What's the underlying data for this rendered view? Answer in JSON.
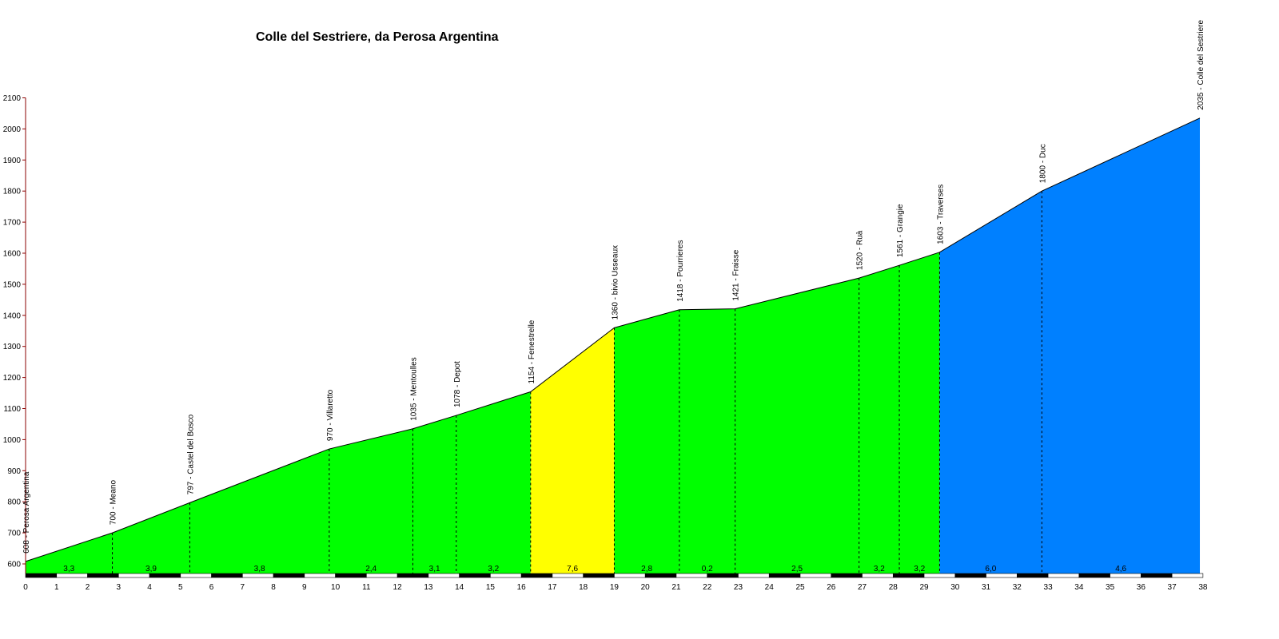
{
  "chart_data": {
    "type": "area",
    "title": "Colle del Sestriere, da Perosa Argentina",
    "xlabel": "",
    "ylabel": "",
    "xlim": [
      0,
      38
    ],
    "ylim": [
      590,
      2100
    ],
    "y_ticks": [
      600,
      700,
      800,
      900,
      1000,
      1100,
      1200,
      1300,
      1400,
      1500,
      1600,
      1700,
      1800,
      1900,
      2000,
      2100
    ],
    "x_ticks": [
      0,
      1,
      2,
      3,
      4,
      5,
      6,
      7,
      8,
      9,
      10,
      11,
      12,
      13,
      14,
      15,
      16,
      17,
      18,
      19,
      20,
      21,
      22,
      23,
      24,
      25,
      26,
      27,
      28,
      29,
      30,
      31,
      32,
      33,
      34,
      35,
      36,
      37,
      38
    ],
    "grid": false,
    "colors": {
      "green": "#00ff00",
      "yellow": "#ffff00",
      "blue": "#0080ff",
      "axis": "#8b0000"
    },
    "waypoints": [
      {
        "km": 0.0,
        "alt": 608,
        "label": "608 - Perosa Argentina"
      },
      {
        "km": 2.8,
        "alt": 700,
        "label": "700 - Meano"
      },
      {
        "km": 5.3,
        "alt": 797,
        "label": "797 - Castel del Bosco"
      },
      {
        "km": 9.8,
        "alt": 970,
        "label": "970 - Villaretto"
      },
      {
        "km": 12.5,
        "alt": 1035,
        "label": "1035 - Mentoulles"
      },
      {
        "km": 13.9,
        "alt": 1078,
        "label": "1078 - Depot"
      },
      {
        "km": 16.3,
        "alt": 1154,
        "label": "1154 - Fenestrelle"
      },
      {
        "km": 19.0,
        "alt": 1360,
        "label": "1360 - bivio Usseaux"
      },
      {
        "km": 21.1,
        "alt": 1418,
        "label": "1418 - Pourrieres"
      },
      {
        "km": 22.9,
        "alt": 1421,
        "label": "1421 - Fraisse"
      },
      {
        "km": 26.9,
        "alt": 1520,
        "label": "1520 - Ruà"
      },
      {
        "km": 28.2,
        "alt": 1561,
        "label": "1561 - Grangie"
      },
      {
        "km": 29.5,
        "alt": 1603,
        "label": "1603 - Traverses"
      },
      {
        "km": 32.8,
        "alt": 1800,
        "label": "1800 - Duc"
      },
      {
        "km": 37.9,
        "alt": 2035,
        "label": "2035 - Colle del Sestriere"
      }
    ],
    "segments": [
      {
        "grade": "3,3",
        "color": "green"
      },
      {
        "grade": "3,9",
        "color": "green"
      },
      {
        "grade": "3,8",
        "color": "green"
      },
      {
        "grade": "2,4",
        "color": "green"
      },
      {
        "grade": "3,1",
        "color": "green"
      },
      {
        "grade": "3,2",
        "color": "green"
      },
      {
        "grade": "7,6",
        "color": "yellow"
      },
      {
        "grade": "2,8",
        "color": "green"
      },
      {
        "grade": "0,2",
        "color": "green"
      },
      {
        "grade": "2,5",
        "color": "green"
      },
      {
        "grade": "3,2",
        "color": "green"
      },
      {
        "grade": "3,2",
        "color": "green"
      },
      {
        "grade": "6,0",
        "color": "blue"
      },
      {
        "grade": "4,6",
        "color": "blue"
      }
    ]
  }
}
